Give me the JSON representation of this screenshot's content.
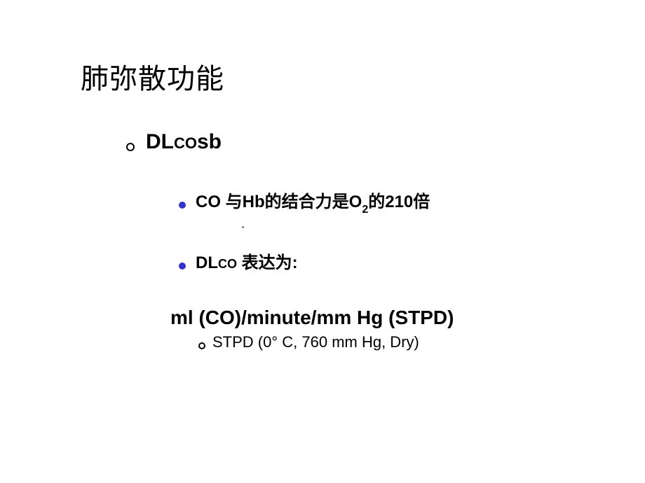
{
  "title": "肺弥散功能",
  "item1": {
    "prefix": "DL",
    "small1": "CO",
    "suffix": "sb"
  },
  "bullet1": {
    "p1": "CO 与Hb的结合力是O",
    "sub": "2",
    "p2": "的210倍"
  },
  "bullet2": {
    "p1": "DL",
    "small": "CO",
    "p2": " 表达为:"
  },
  "units": "ml (CO)/minute/mm Hg (STPD)",
  "stpd": "STPD (0° C, 760 mm Hg, Dry)"
}
